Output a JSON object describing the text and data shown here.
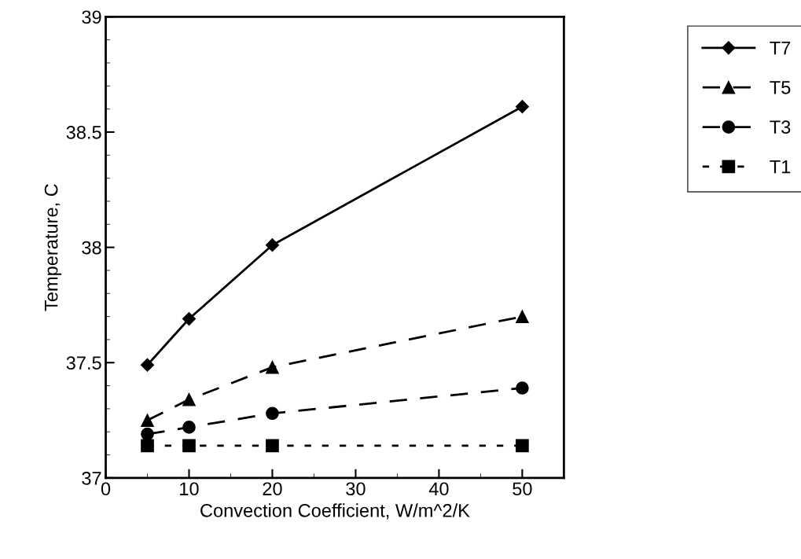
{
  "chart_data": {
    "type": "line",
    "xlabel": "Convection Coefficient, W/m^2/K",
    "ylabel": "Temperature, C",
    "x": [
      5,
      10,
      20,
      50
    ],
    "xlim": [
      0,
      55
    ],
    "xticks": [
      0,
      10,
      20,
      30,
      40,
      50
    ],
    "ylim": [
      37,
      39
    ],
    "yticks": [
      37,
      37.5,
      38,
      38.5,
      39
    ],
    "grid": false,
    "legend": "top right",
    "series": [
      {
        "name": "T7",
        "color": "#000000",
        "marker": "diamond",
        "line_style": "solid",
        "values": [
          37.49,
          37.69,
          38.01,
          38.61
        ]
      },
      {
        "name": "T5",
        "color": "#000000",
        "marker": "triangle",
        "line_style": "dashed",
        "values": [
          37.25,
          37.34,
          37.48,
          37.7
        ]
      },
      {
        "name": "T3",
        "color": "#000000",
        "marker": "circle",
        "line_style": "dashed",
        "values": [
          37.19,
          37.22,
          37.28,
          37.39
        ]
      },
      {
        "name": "T1",
        "color": "#000000",
        "marker": "square",
        "line_style": "dotted",
        "values": [
          37.14,
          37.14,
          37.14,
          37.14
        ]
      }
    ]
  }
}
